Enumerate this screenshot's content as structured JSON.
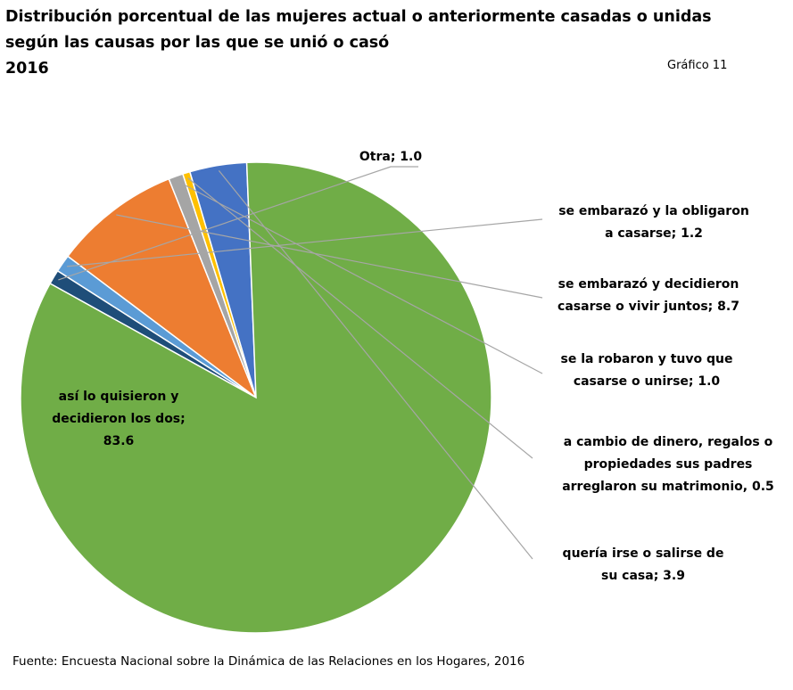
{
  "title_lines": [
    "Distribución porcentual de las mujeres actual o anteriormente casadas o unidas",
    "según las causas por las que se unió o casó",
    "2016"
  ],
  "figure_label": "Gráfico 11",
  "source": "Fuente: Encuesta Nacional sobre la Dinámica de las Relaciones en los Hogares, 2016",
  "chart_data": {
    "type": "pie",
    "title": "Distribución porcentual de las mujeres actual o anteriormente casadas o unidas según las causas por las que se unió o casó 2016",
    "series": [
      {
        "name": "Otra",
        "value": 1.0,
        "color": "#1F4E79",
        "label_lines": [
          "Otra; 1.0"
        ]
      },
      {
        "name": "se embarazó y la obligaron a casarse",
        "value": 1.2,
        "color": "#5B9BD5",
        "label_lines": [
          "se embarazó y la obligaron",
          "a casarse; 1.2"
        ]
      },
      {
        "name": "se embarazó y decidieron casarse o vivir juntos",
        "value": 8.7,
        "color": "#ED7D31",
        "label_lines": [
          "se embarazó y decidieron",
          "casarse o vivir juntos; 8.7"
        ]
      },
      {
        "name": "se la robaron y tuvo que casarse o unirse",
        "value": 1.0,
        "color": "#A5A5A5",
        "label_lines": [
          "se la robaron y tuvo que",
          "casarse o unirse; 1.0"
        ]
      },
      {
        "name": "a cambio de dinero, regalos o propiedades sus padres arreglaron su matrimonio",
        "value": 0.5,
        "color": "#FFC000",
        "label_lines": [
          "a cambio de dinero, regalos o",
          "propiedades sus padres",
          "arreglaron su matrimonio, 0.5"
        ]
      },
      {
        "name": "quería irse o salirse de su casa",
        "value": 3.9,
        "color": "#4472C4",
        "label_lines": [
          "quería irse o salirse de",
          "su casa; 3.9"
        ]
      },
      {
        "name": "así lo quisieron y decidieron los dos",
        "value": 83.6,
        "color": "#70AD47",
        "label_lines": [
          "así lo quisieron y",
          "decidieron los dos;",
          "83.6"
        ]
      }
    ]
  }
}
